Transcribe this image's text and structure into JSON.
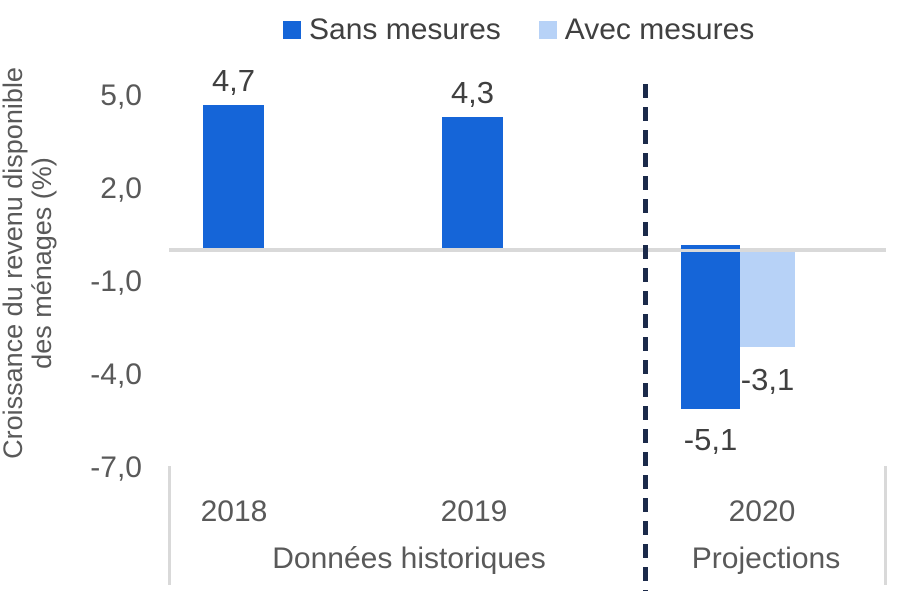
{
  "colors": {
    "bar_dark_blue": "#1565D8",
    "bar_light_blue": "#B7D2F7",
    "axis_line_gray": "#D9D9D9",
    "separator_navy": "#1B2A4A",
    "axis_text_gray": "#595959",
    "data_label_gray": "#404040"
  },
  "chart_data": {
    "type": "bar",
    "title": "",
    "ylabel": "Croissance du revenu disponible des ménages (%)",
    "ylabel_lines": [
      "Croissance du revenu disponible",
      "des ménages (%)"
    ],
    "categories": [
      "2018",
      "2019",
      "2020"
    ],
    "series": [
      {
        "name": "Sans mesures",
        "color": "#1565D8",
        "values": [
          4.7,
          4.3,
          -5.1
        ],
        "labels": [
          "4,7",
          "4,3",
          "-5,1"
        ]
      },
      {
        "name": "Avec mesures",
        "color": "#B7D2F7",
        "values": [
          null,
          null,
          -3.1
        ],
        "labels": [
          null,
          null,
          "-3,1"
        ]
      }
    ],
    "yticks": [
      {
        "value": 5,
        "label": "5,0"
      },
      {
        "value": 2,
        "label": "2,0"
      },
      {
        "value": -1,
        "label": "-1,0"
      },
      {
        "value": -4,
        "label": "-4,0"
      },
      {
        "value": -7,
        "label": "-7,0"
      }
    ],
    "ylim": [
      -7.5,
      6.0
    ],
    "grid": false,
    "legend_position": "top",
    "groups": [
      {
        "label": "Données historiques",
        "categories": [
          "2018",
          "2019"
        ]
      },
      {
        "label": "Projections",
        "categories": [
          "2020"
        ]
      }
    ],
    "separator_note": "dashed vertical line between historical data and projections"
  }
}
